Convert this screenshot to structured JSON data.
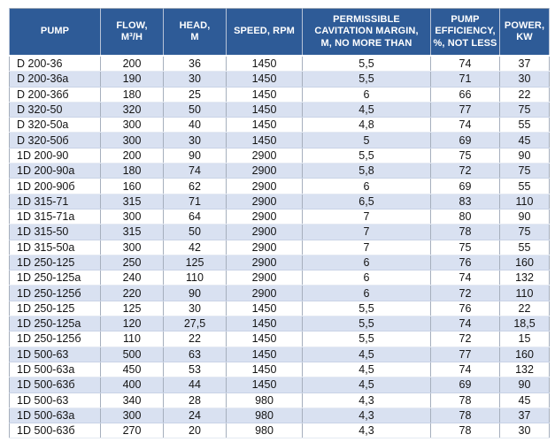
{
  "colors": {
    "header_bg": "#2e5b97",
    "header_text": "#ffffff",
    "band_row_bg": "#d9e1f1",
    "plain_row_bg": "#ffffff",
    "table_border": "#9aa5b4"
  },
  "table": {
    "columns": [
      "PUMP",
      "FLOW,\nM³/H",
      "HEAD,\nM",
      "SPEED, RPM",
      "PERMISSIBLE\nCAVITATION MARGIN,\nM, NO MORE THAN",
      "PUMP\nEFFICIENCY,\n%, NOT LESS",
      "POWER,\nKW"
    ],
    "column_keys": [
      "pump",
      "flow",
      "head",
      "speed",
      "cavitation-margin",
      "efficiency",
      "power"
    ],
    "rows": [
      [
        "D 200-36",
        "200",
        "36",
        "1450",
        "5,5",
        "74",
        "37"
      ],
      [
        "D 200-36a",
        "190",
        "30",
        "1450",
        "5,5",
        "71",
        "30"
      ],
      [
        "D 200-36б",
        "180",
        "25",
        "1450",
        "6",
        "66",
        "22"
      ],
      [
        "D 320-50",
        "320",
        "50",
        "1450",
        "4,5",
        "77",
        "75"
      ],
      [
        "D 320-50a",
        "300",
        "40",
        "1450",
        "4,8",
        "74",
        "55"
      ],
      [
        "D 320-50б",
        "300",
        "30",
        "1450",
        "5",
        "69",
        "45"
      ],
      [
        "1D 200-90",
        "200",
        "90",
        "2900",
        "5,5",
        "75",
        "90"
      ],
      [
        "1D 200-90a",
        "180",
        "74",
        "2900",
        "5,8",
        "72",
        "75"
      ],
      [
        "1D 200-90б",
        "160",
        "62",
        "2900",
        "6",
        "69",
        "55"
      ],
      [
        "1D 315-71",
        "315",
        "71",
        "2900",
        "6,5",
        "83",
        "110"
      ],
      [
        "1D 315-71a",
        "300",
        "64",
        "2900",
        "7",
        "80",
        "90"
      ],
      [
        "1D 315-50",
        "315",
        "50",
        "2900",
        "7",
        "78",
        "75"
      ],
      [
        "1D 315-50a",
        "300",
        "42",
        "2900",
        "7",
        "75",
        "55"
      ],
      [
        "1D 250-125",
        "250",
        "125",
        "2900",
        "6",
        "76",
        "160"
      ],
      [
        "1D 250-125a",
        "240",
        "110",
        "2900",
        "6",
        "74",
        "132"
      ],
      [
        "1D 250-125б",
        "220",
        "90",
        "2900",
        "6",
        "72",
        "110"
      ],
      [
        "1D 250-125",
        "125",
        "30",
        "1450",
        "5,5",
        "76",
        "22"
      ],
      [
        "1D 250-125a",
        "120",
        "27,5",
        "1450",
        "5,5",
        "74",
        "18,5"
      ],
      [
        "1D 250-125б",
        "110",
        "22",
        "1450",
        "5,5",
        "72",
        "15"
      ],
      [
        "1D 500-63",
        "500",
        "63",
        "1450",
        "4,5",
        "77",
        "160"
      ],
      [
        "1D 500-63a",
        "450",
        "53",
        "1450",
        "4,5",
        "74",
        "132"
      ],
      [
        "1D 500-63б",
        "400",
        "44",
        "1450",
        "4,5",
        "69",
        "90"
      ],
      [
        "1D 500-63",
        "340",
        "28",
        "980",
        "4,3",
        "78",
        "45"
      ],
      [
        "1D 500-63a",
        "300",
        "24",
        "980",
        "4,3",
        "78",
        "37"
      ],
      [
        "1D 500-63б",
        "270",
        "20",
        "980",
        "4,3",
        "78",
        "30"
      ]
    ]
  }
}
